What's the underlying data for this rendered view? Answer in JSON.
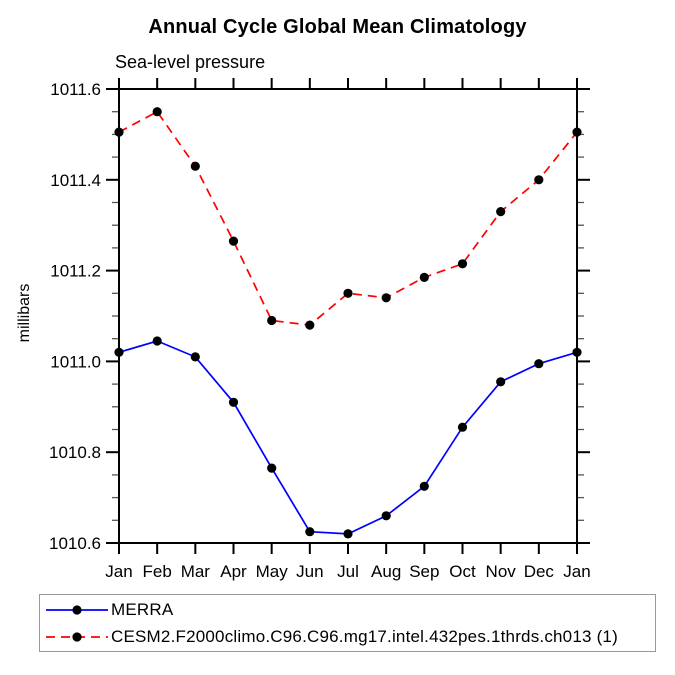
{
  "window": {
    "title": "Annual Cycle Global Mean Climatology"
  },
  "chart_data": {
    "type": "line",
    "title": "Annual Cycle Global Mean Climatology",
    "subtitle": "Sea-level pressure",
    "xlabel": "",
    "ylabel": "millibars",
    "categories": [
      "Jan",
      "Feb",
      "Mar",
      "Apr",
      "May",
      "Jun",
      "Jul",
      "Aug",
      "Sep",
      "Oct",
      "Nov",
      "Dec",
      "Jan"
    ],
    "ylim": [
      1010.6,
      1011.6
    ],
    "ytick_step": 0.2,
    "yminor_step": 0.05,
    "ytick_labels": [
      "1010.6",
      "1010.8",
      "1011.0",
      "1011.2",
      "1011.4",
      "1011.6"
    ],
    "grid": false,
    "legend_position": "bottom-left",
    "axis_color": "#000000",
    "marker_color": "#000000",
    "series": [
      {
        "name": "MERRA",
        "color": "#0000ff",
        "dash": "solid",
        "marker": "filled-circle",
        "values": [
          1011.02,
          1011.045,
          1011.01,
          1010.91,
          1010.765,
          1010.625,
          1010.62,
          1010.66,
          1010.725,
          1010.855,
          1010.955,
          1010.995,
          1011.02
        ]
      },
      {
        "name": "CESM2.F2000climo.C96.C96.mg17.intel.432pes.1thrds.ch013 (1)",
        "color": "#ff0000",
        "dash": "dashed",
        "marker": "filled-circle",
        "values": [
          1011.505,
          1011.55,
          1011.43,
          1011.265,
          1011.09,
          1011.08,
          1011.15,
          1011.14,
          1011.185,
          1011.215,
          1011.33,
          1011.4,
          1011.505
        ]
      }
    ]
  }
}
